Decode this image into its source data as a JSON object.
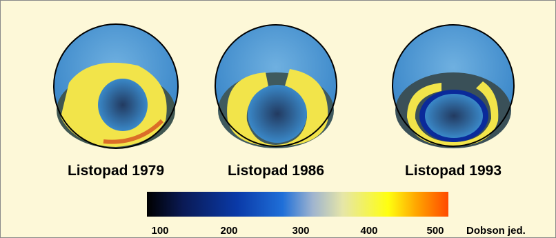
{
  "panels": [
    {
      "label": "Listopad 1979"
    },
    {
      "label": "Listopad 1986"
    },
    {
      "label": "Listopad 1993"
    }
  ],
  "colorbar": {
    "ticks": [
      100,
      200,
      300,
      400,
      500
    ],
    "unit": "Dobson jed."
  }
}
